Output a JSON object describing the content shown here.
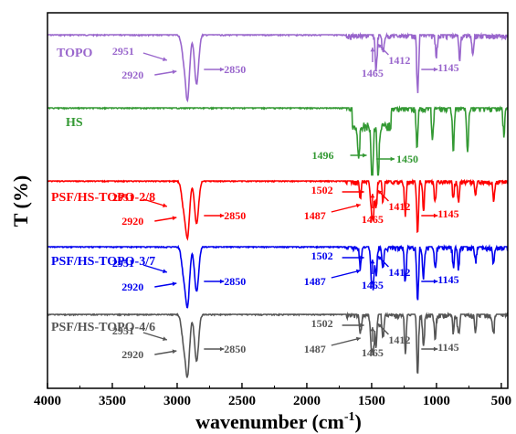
{
  "chart_data": {
    "type": "line",
    "title": "",
    "xlabel": "wavenumber (cm",
    "xlabel_sup": "-1",
    "xlabel_close": ")",
    "ylabel": "T (%)",
    "xlim": [
      4000,
      450
    ],
    "x_reversed": true,
    "xticks": [
      "4000",
      "3500",
      "3000",
      "2500",
      "2000",
      "1500",
      "1000",
      "500"
    ],
    "grid": false,
    "legend": "none (labels placed beside each curve)",
    "series": [
      {
        "name": "TOPO",
        "color": "#9966cc",
        "baseline": 0,
        "peaks": [
          {
            "wn": 2951,
            "depth": 0.3
          },
          {
            "wn": 2920,
            "depth": 0.95
          },
          {
            "wn": 2850,
            "depth": 0.75
          },
          {
            "wn": 1465,
            "depth": 0.55
          },
          {
            "wn": 1412,
            "depth": 0.3
          },
          {
            "wn": 1145,
            "depth": 0.9
          },
          {
            "wn": 1000,
            "depth": 0.3
          },
          {
            "wn": 820,
            "depth": 0.35
          },
          {
            "wn": 720,
            "depth": 0.25
          }
        ],
        "annotations": [
          {
            "text": "2951",
            "wn": 2951
          },
          {
            "text": "2920",
            "wn": 2920
          },
          {
            "text": "2850",
            "wn": 2850
          },
          {
            "text": "1465",
            "wn": 1465
          },
          {
            "text": "1412",
            "wn": 1412
          },
          {
            "text": "1145",
            "wn": 1145
          }
        ]
      },
      {
        "name": "HS",
        "color": "#339933",
        "baseline": 1,
        "peaks": [
          {
            "wn": 1600,
            "depth": 0.55
          },
          {
            "wn": 1496,
            "depth": 0.95
          },
          {
            "wn": 1450,
            "depth": 0.85
          },
          {
            "wn": 1150,
            "depth": 0.6
          },
          {
            "wn": 1030,
            "depth": 0.5
          },
          {
            "wn": 870,
            "depth": 0.7
          },
          {
            "wn": 760,
            "depth": 0.65
          },
          {
            "wn": 480,
            "depth": 0.4
          }
        ],
        "annotations": [
          {
            "text": "1496",
            "wn": 1496
          },
          {
            "text": "1450",
            "wn": 1450
          }
        ]
      },
      {
        "name": "PSF/HS-TOPO-2/8",
        "color": "#ff0000",
        "baseline": 2,
        "peaks": [
          {
            "wn": 2951,
            "depth": 0.4
          },
          {
            "wn": 2920,
            "depth": 0.95
          },
          {
            "wn": 2850,
            "depth": 0.75
          },
          {
            "wn": 1587,
            "depth": 0.35
          },
          {
            "wn": 1502,
            "depth": 0.5
          },
          {
            "wn": 1487,
            "depth": 0.6
          },
          {
            "wn": 1465,
            "depth": 0.5
          },
          {
            "wn": 1412,
            "depth": 0.4
          },
          {
            "wn": 1240,
            "depth": 0.6
          },
          {
            "wn": 1145,
            "depth": 0.95
          },
          {
            "wn": 1100,
            "depth": 0.5
          },
          {
            "wn": 1010,
            "depth": 0.4
          },
          {
            "wn": 870,
            "depth": 0.3
          },
          {
            "wn": 830,
            "depth": 0.35
          },
          {
            "wn": 700,
            "depth": 0.25
          },
          {
            "wn": 560,
            "depth": 0.3
          }
        ],
        "annotations": [
          {
            "text": "2951",
            "wn": 2951
          },
          {
            "text": "2920",
            "wn": 2920
          },
          {
            "text": "2850",
            "wn": 2850
          },
          {
            "text": "1502",
            "wn": 1502
          },
          {
            "text": "1487",
            "wn": 1487
          },
          {
            "text": "1465",
            "wn": 1465
          },
          {
            "text": "1412",
            "wn": 1412
          },
          {
            "text": "1145",
            "wn": 1145
          }
        ]
      },
      {
        "name": "PSF/HS-TOPO-3/7",
        "color": "#0000ee",
        "baseline": 3,
        "peaks": [
          {
            "wn": 2951,
            "depth": 0.4
          },
          {
            "wn": 2920,
            "depth": 0.95
          },
          {
            "wn": 2850,
            "depth": 0.75
          },
          {
            "wn": 1587,
            "depth": 0.35
          },
          {
            "wn": 1502,
            "depth": 0.5
          },
          {
            "wn": 1487,
            "depth": 0.6
          },
          {
            "wn": 1465,
            "depth": 0.5
          },
          {
            "wn": 1412,
            "depth": 0.4
          },
          {
            "wn": 1240,
            "depth": 0.6
          },
          {
            "wn": 1145,
            "depth": 0.95
          },
          {
            "wn": 1100,
            "depth": 0.5
          },
          {
            "wn": 1010,
            "depth": 0.4
          },
          {
            "wn": 870,
            "depth": 0.3
          },
          {
            "wn": 830,
            "depth": 0.35
          },
          {
            "wn": 700,
            "depth": 0.25
          },
          {
            "wn": 560,
            "depth": 0.3
          }
        ],
        "annotations": [
          {
            "text": "2951",
            "wn": 2951
          },
          {
            "text": "2920",
            "wn": 2920
          },
          {
            "text": "2850",
            "wn": 2850
          },
          {
            "text": "1502",
            "wn": 1502
          },
          {
            "text": "1487",
            "wn": 1487
          },
          {
            "text": "1465",
            "wn": 1465
          },
          {
            "text": "1412",
            "wn": 1412
          },
          {
            "text": "1145",
            "wn": 1145
          }
        ]
      },
      {
        "name": "PSF/HS-TOPO-4/6",
        "color": "#555555",
        "baseline": 4,
        "peaks": [
          {
            "wn": 2951,
            "depth": 0.4
          },
          {
            "wn": 2920,
            "depth": 0.95
          },
          {
            "wn": 2850,
            "depth": 0.75
          },
          {
            "wn": 1587,
            "depth": 0.35
          },
          {
            "wn": 1502,
            "depth": 0.5
          },
          {
            "wn": 1487,
            "depth": 0.6
          },
          {
            "wn": 1465,
            "depth": 0.5
          },
          {
            "wn": 1412,
            "depth": 0.4
          },
          {
            "wn": 1240,
            "depth": 0.6
          },
          {
            "wn": 1145,
            "depth": 0.95
          },
          {
            "wn": 1100,
            "depth": 0.5
          },
          {
            "wn": 1010,
            "depth": 0.4
          },
          {
            "wn": 870,
            "depth": 0.3
          },
          {
            "wn": 830,
            "depth": 0.35
          },
          {
            "wn": 700,
            "depth": 0.25
          },
          {
            "wn": 560,
            "depth": 0.3
          }
        ],
        "annotations": [
          {
            "text": "1502",
            "wn": 1502
          },
          {
            "text": "1487",
            "wn": 1487
          },
          {
            "text": "1465",
            "wn": 1465
          },
          {
            "text": "1412",
            "wn": 1412
          },
          {
            "text": "1145",
            "wn": 1145
          },
          {
            "text": "2951",
            "wn": 2951
          },
          {
            "text": "2920",
            "wn": 2920
          },
          {
            "text": "2850",
            "wn": 2850
          }
        ]
      }
    ]
  }
}
